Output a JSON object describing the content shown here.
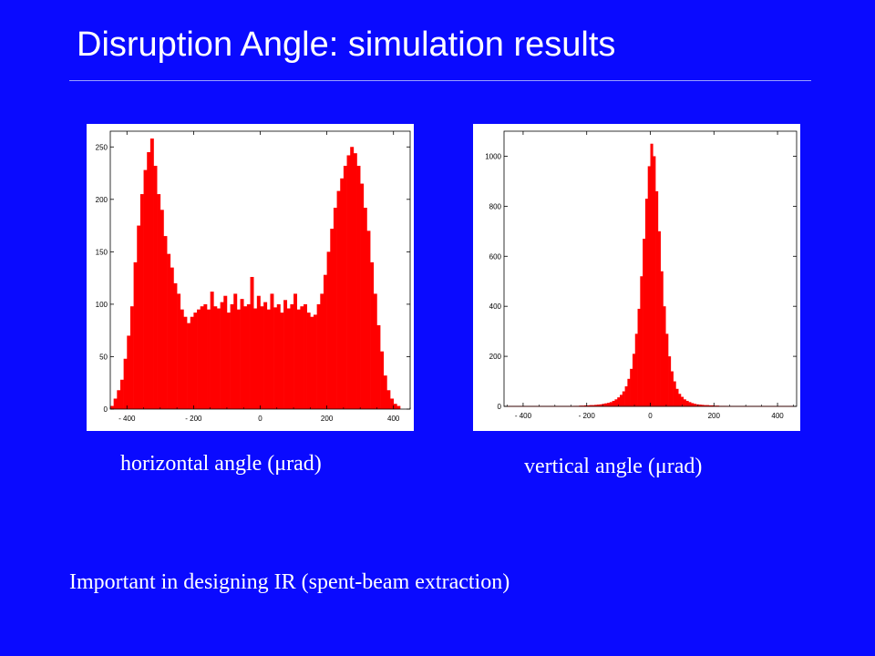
{
  "slide": {
    "title": "Disruption Angle: simulation results",
    "caption_left": "horizontal angle (μrad)",
    "caption_right": "vertical angle (μrad)",
    "note": "Important in designing IR (spent-beam extraction)"
  },
  "colors": {
    "background": "#0a0aff",
    "bars": "#ff0000",
    "text": "#ffffff"
  },
  "chart_data": [
    {
      "type": "bar",
      "title": "",
      "xlabel": "horizontal angle (μrad)",
      "ylabel": "",
      "xlim": [
        -450,
        450
      ],
      "ylim": [
        0,
        265
      ],
      "xticks": [
        -400,
        -200,
        0,
        200,
        400
      ],
      "xtick_labels": [
        "- 400",
        "- 200",
        "0",
        "200",
        "400"
      ],
      "yticks": [
        0,
        50,
        100,
        150,
        200,
        250
      ],
      "grid": false,
      "bin_width": 10,
      "bins": [
        {
          "x": -445,
          "y": 3
        },
        {
          "x": -435,
          "y": 10
        },
        {
          "x": -425,
          "y": 18
        },
        {
          "x": -415,
          "y": 28
        },
        {
          "x": -405,
          "y": 48
        },
        {
          "x": -395,
          "y": 70
        },
        {
          "x": -385,
          "y": 98
        },
        {
          "x": -375,
          "y": 140
        },
        {
          "x": -365,
          "y": 175
        },
        {
          "x": -355,
          "y": 205
        },
        {
          "x": -345,
          "y": 228
        },
        {
          "x": -335,
          "y": 245
        },
        {
          "x": -325,
          "y": 258
        },
        {
          "x": -315,
          "y": 232
        },
        {
          "x": -305,
          "y": 205
        },
        {
          "x": -295,
          "y": 190
        },
        {
          "x": -285,
          "y": 165
        },
        {
          "x": -275,
          "y": 148
        },
        {
          "x": -265,
          "y": 135
        },
        {
          "x": -255,
          "y": 120
        },
        {
          "x": -245,
          "y": 110
        },
        {
          "x": -235,
          "y": 95
        },
        {
          "x": -225,
          "y": 88
        },
        {
          "x": -215,
          "y": 82
        },
        {
          "x": -205,
          "y": 88
        },
        {
          "x": -195,
          "y": 92
        },
        {
          "x": -185,
          "y": 95
        },
        {
          "x": -175,
          "y": 98
        },
        {
          "x": -165,
          "y": 100
        },
        {
          "x": -155,
          "y": 95
        },
        {
          "x": -145,
          "y": 112
        },
        {
          "x": -135,
          "y": 98
        },
        {
          "x": -125,
          "y": 96
        },
        {
          "x": -115,
          "y": 102
        },
        {
          "x": -105,
          "y": 108
        },
        {
          "x": -95,
          "y": 92
        },
        {
          "x": -85,
          "y": 100
        },
        {
          "x": -75,
          "y": 110
        },
        {
          "x": -65,
          "y": 95
        },
        {
          "x": -55,
          "y": 105
        },
        {
          "x": -45,
          "y": 98
        },
        {
          "x": -35,
          "y": 100
        },
        {
          "x": -25,
          "y": 126
        },
        {
          "x": -15,
          "y": 96
        },
        {
          "x": -5,
          "y": 108
        },
        {
          "x": 5,
          "y": 98
        },
        {
          "x": 15,
          "y": 102
        },
        {
          "x": 25,
          "y": 95
        },
        {
          "x": 35,
          "y": 110
        },
        {
          "x": 45,
          "y": 97
        },
        {
          "x": 55,
          "y": 100
        },
        {
          "x": 65,
          "y": 92
        },
        {
          "x": 75,
          "y": 104
        },
        {
          "x": 85,
          "y": 96
        },
        {
          "x": 95,
          "y": 100
        },
        {
          "x": 105,
          "y": 110
        },
        {
          "x": 115,
          "y": 95
        },
        {
          "x": 125,
          "y": 98
        },
        {
          "x": 135,
          "y": 100
        },
        {
          "x": 145,
          "y": 92
        },
        {
          "x": 155,
          "y": 88
        },
        {
          "x": 165,
          "y": 90
        },
        {
          "x": 175,
          "y": 100
        },
        {
          "x": 185,
          "y": 110
        },
        {
          "x": 195,
          "y": 128
        },
        {
          "x": 205,
          "y": 150
        },
        {
          "x": 215,
          "y": 172
        },
        {
          "x": 225,
          "y": 192
        },
        {
          "x": 235,
          "y": 208
        },
        {
          "x": 245,
          "y": 220
        },
        {
          "x": 255,
          "y": 232
        },
        {
          "x": 265,
          "y": 242
        },
        {
          "x": 275,
          "y": 250
        },
        {
          "x": 285,
          "y": 244
        },
        {
          "x": 295,
          "y": 232
        },
        {
          "x": 305,
          "y": 215
        },
        {
          "x": 315,
          "y": 192
        },
        {
          "x": 325,
          "y": 170
        },
        {
          "x": 335,
          "y": 140
        },
        {
          "x": 345,
          "y": 110
        },
        {
          "x": 355,
          "y": 80
        },
        {
          "x": 365,
          "y": 55
        },
        {
          "x": 375,
          "y": 32
        },
        {
          "x": 385,
          "y": 18
        },
        {
          "x": 395,
          "y": 10
        },
        {
          "x": 405,
          "y": 5
        },
        {
          "x": 415,
          "y": 3
        }
      ]
    },
    {
      "type": "bar",
      "title": "",
      "xlabel": "vertical angle (μrad)",
      "ylabel": "",
      "xlim": [
        -460,
        460
      ],
      "ylim": [
        0,
        1100
      ],
      "xticks": [
        -400,
        -200,
        0,
        200,
        400
      ],
      "xtick_labels": [
        "- 400",
        "- 200",
        "0",
        "200",
        "400"
      ],
      "yticks": [
        0,
        200,
        400,
        600,
        800,
        1000
      ],
      "grid": false,
      "bin_width": 8,
      "bins": [
        {
          "x": -236,
          "y": 2
        },
        {
          "x": -228,
          "y": 2
        },
        {
          "x": -220,
          "y": 3
        },
        {
          "x": -212,
          "y": 3
        },
        {
          "x": -204,
          "y": 4
        },
        {
          "x": -196,
          "y": 4
        },
        {
          "x": -188,
          "y": 5
        },
        {
          "x": -180,
          "y": 5
        },
        {
          "x": -172,
          "y": 6
        },
        {
          "x": -164,
          "y": 7
        },
        {
          "x": -156,
          "y": 8
        },
        {
          "x": -148,
          "y": 10
        },
        {
          "x": -140,
          "y": 12
        },
        {
          "x": -132,
          "y": 14
        },
        {
          "x": -124,
          "y": 17
        },
        {
          "x": -116,
          "y": 22
        },
        {
          "x": -108,
          "y": 28
        },
        {
          "x": -100,
          "y": 36
        },
        {
          "x": -92,
          "y": 46
        },
        {
          "x": -84,
          "y": 60
        },
        {
          "x": -76,
          "y": 80
        },
        {
          "x": -68,
          "y": 110
        },
        {
          "x": -60,
          "y": 150
        },
        {
          "x": -52,
          "y": 210
        },
        {
          "x": -44,
          "y": 290
        },
        {
          "x": -36,
          "y": 390
        },
        {
          "x": -28,
          "y": 520
        },
        {
          "x": -20,
          "y": 670
        },
        {
          "x": -12,
          "y": 830
        },
        {
          "x": -4,
          "y": 960
        },
        {
          "x": 4,
          "y": 1050
        },
        {
          "x": 12,
          "y": 1000
        },
        {
          "x": 20,
          "y": 860
        },
        {
          "x": 28,
          "y": 700
        },
        {
          "x": 36,
          "y": 540
        },
        {
          "x": 44,
          "y": 400
        },
        {
          "x": 52,
          "y": 290
        },
        {
          "x": 60,
          "y": 200
        },
        {
          "x": 68,
          "y": 140
        },
        {
          "x": 76,
          "y": 100
        },
        {
          "x": 84,
          "y": 70
        },
        {
          "x": 92,
          "y": 50
        },
        {
          "x": 100,
          "y": 38
        },
        {
          "x": 108,
          "y": 28
        },
        {
          "x": 116,
          "y": 22
        },
        {
          "x": 124,
          "y": 17
        },
        {
          "x": 132,
          "y": 13
        },
        {
          "x": 140,
          "y": 10
        },
        {
          "x": 148,
          "y": 8
        },
        {
          "x": 156,
          "y": 7
        },
        {
          "x": 164,
          "y": 6
        },
        {
          "x": 172,
          "y": 5
        },
        {
          "x": 180,
          "y": 5
        },
        {
          "x": 188,
          "y": 4
        },
        {
          "x": 196,
          "y": 4
        },
        {
          "x": 204,
          "y": 3
        },
        {
          "x": 212,
          "y": 3
        },
        {
          "x": 220,
          "y": 2
        },
        {
          "x": 228,
          "y": 2
        },
        {
          "x": 236,
          "y": 2
        }
      ]
    }
  ]
}
